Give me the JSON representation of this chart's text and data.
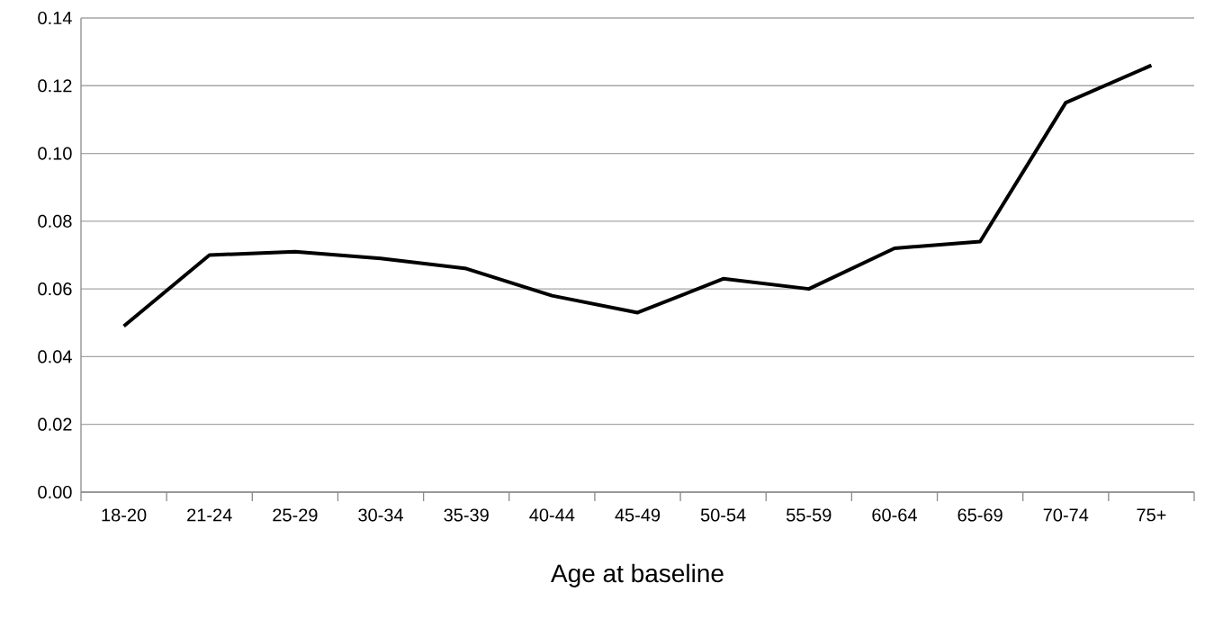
{
  "chart_data": {
    "type": "line",
    "xlabel": "Age at baseline",
    "categories": [
      "18-20",
      "21-24",
      "25-29",
      "30-34",
      "35-39",
      "40-44",
      "45-49",
      "50-54",
      "55-59",
      "60-64",
      "65-69",
      "70-74",
      "75+"
    ],
    "values": [
      0.049,
      0.07,
      0.071,
      0.069,
      0.066,
      0.058,
      0.053,
      0.063,
      0.06,
      0.072,
      0.074,
      0.115,
      0.126
    ],
    "color": "#000000",
    "marker": "none",
    "line_style": "solid",
    "grid": "y",
    "ylim": [
      0,
      0.14
    ],
    "yticks": [
      {
        "value": 0,
        "label": "0.00"
      },
      {
        "value": 0.02,
        "label": "0.02"
      },
      {
        "value": 0.04,
        "label": "0.04"
      },
      {
        "value": 0.06,
        "label": "0.06"
      },
      {
        "value": 0.08,
        "label": "0.08"
      },
      {
        "value": 0.1,
        "label": "0.10"
      },
      {
        "value": 0.12,
        "label": "0.12"
      },
      {
        "value": 0.14,
        "label": "0.14"
      }
    ]
  }
}
